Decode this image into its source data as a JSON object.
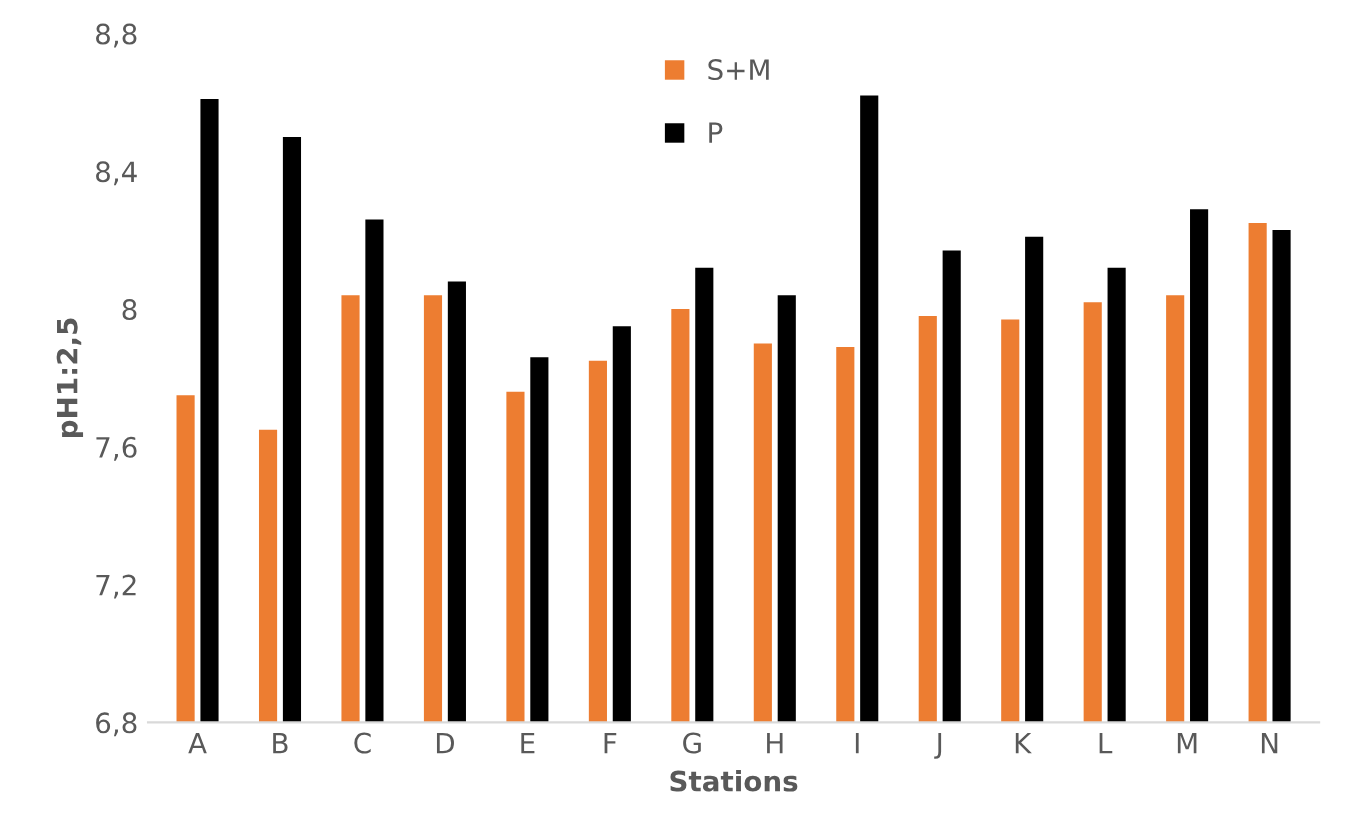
{
  "chart_data": {
    "type": "bar",
    "xlabel": "Stations",
    "ylabel": "pH1:2,5",
    "categories": [
      "A",
      "B",
      "C",
      "D",
      "E",
      "F",
      "G",
      "H",
      "I",
      "J",
      "K",
      "L",
      "M",
      "N"
    ],
    "series": [
      {
        "name": "S+M",
        "color": "#ed7d31",
        "values": [
          7.75,
          7.65,
          8.04,
          8.04,
          7.76,
          7.85,
          8.0,
          7.9,
          7.89,
          7.98,
          7.97,
          8.02,
          8.04,
          8.25
        ]
      },
      {
        "name": "P",
        "color": "#000000",
        "values": [
          8.61,
          8.5,
          8.26,
          8.08,
          7.86,
          7.95,
          8.12,
          8.04,
          8.62,
          8.17,
          8.21,
          8.12,
          8.29,
          8.23
        ]
      }
    ],
    "ylim": [
      6.8,
      8.8
    ],
    "yticks": [
      {
        "value": 6.8,
        "label": "6,8"
      },
      {
        "value": 7.2,
        "label": "7,2"
      },
      {
        "value": 7.6,
        "label": "7,6"
      },
      {
        "value": 8,
        "label": "8"
      },
      {
        "value": 8.4,
        "label": "8,4"
      },
      {
        "value": 8.8,
        "label": "8,8"
      }
    ],
    "grid": false,
    "legend": "top"
  }
}
